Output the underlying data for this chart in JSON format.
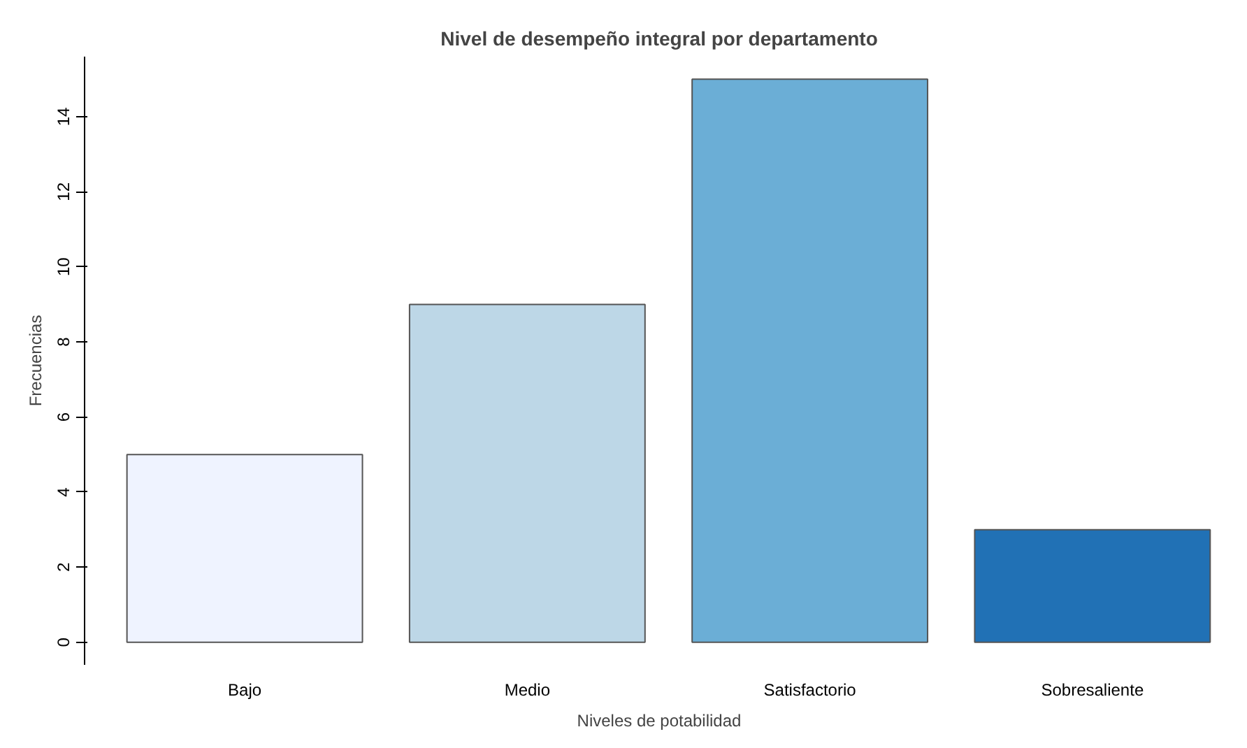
{
  "chart_data": {
    "type": "bar",
    "title": "Nivel de desempeño integral por departamento",
    "xlabel": "Niveles de potabilidad",
    "ylabel": "Frecuencias",
    "categories": [
      "Bajo",
      "Medio",
      "Satisfactorio",
      "Sobresaliente"
    ],
    "values": [
      5,
      9,
      15,
      3
    ],
    "colors": [
      "#eff3ff",
      "#bdd7e7",
      "#6baed6",
      "#2171b5"
    ],
    "ylim": [
      -0.6,
      15.6
    ],
    "yticks": [
      0,
      2,
      4,
      6,
      8,
      10,
      12,
      14
    ],
    "grid": false
  }
}
